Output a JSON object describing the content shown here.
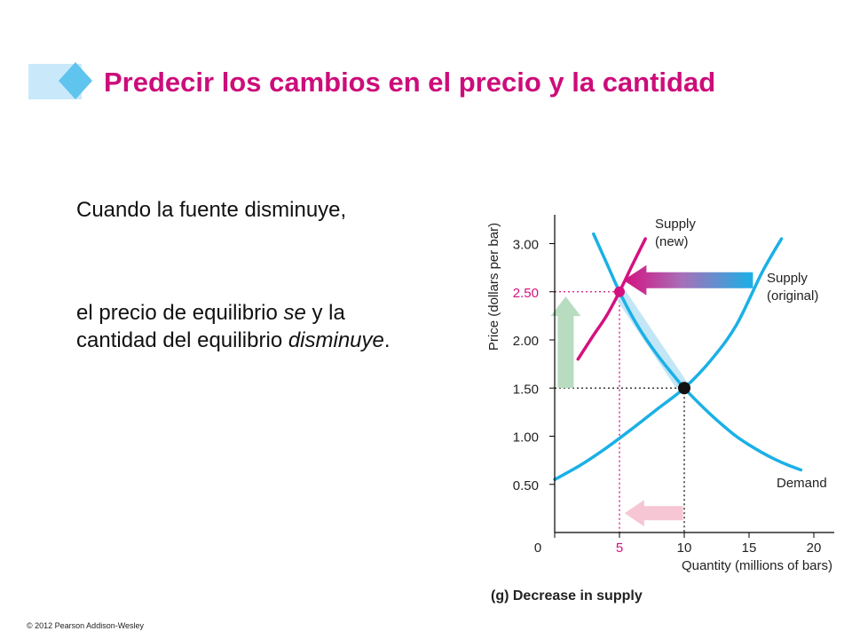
{
  "slide": {
    "title": "Predecir los cambios en el precio y la cantidad",
    "para1": "Cuando la fuente disminuye,",
    "para2_a": "el precio de equilibrio ",
    "para2_b": "se",
    "para2_c": " y la cantidad del equilibrio ",
    "para2_d": "disminuye",
    "para2_e": ".",
    "copyright": "© 2012 Pearson Addison-Wesley"
  },
  "colors": {
    "title": "#cc0d7a",
    "curve_blue": "#1ab0e6",
    "curve_new": "#d4117f",
    "arrow_green": "#b8dcc0",
    "arrow_pink": "#f6c6d4"
  },
  "chart_data": {
    "type": "line",
    "caption": "(g) Decrease in supply",
    "xlabel": "Quantity (millions of bars)",
    "ylabel": "Price (dollars per bar)",
    "xlim": [
      0,
      21
    ],
    "ylim": [
      0,
      3.3
    ],
    "x_ticks": [
      "0",
      "5",
      "10",
      "15",
      "20"
    ],
    "x_tick_values": [
      0,
      5,
      10,
      15,
      20
    ],
    "y_ticks": [
      "0.50",
      "1.00",
      "1.50",
      "2.00",
      "2.50",
      "3.00"
    ],
    "y_tick_values": [
      0.5,
      1.0,
      1.5,
      2.0,
      2.5,
      3.0
    ],
    "series": [
      {
        "name": "Demand",
        "label": "Demand",
        "color": "#1ab0e6",
        "x": [
          3,
          4,
          5,
          6,
          7,
          8,
          9,
          10,
          11,
          12,
          13,
          14,
          15,
          16,
          17,
          18,
          19
        ],
        "y": [
          3.1,
          2.8,
          2.5,
          2.24,
          2.02,
          1.83,
          1.66,
          1.5,
          1.36,
          1.23,
          1.11,
          1.0,
          0.91,
          0.83,
          0.76,
          0.7,
          0.65
        ]
      },
      {
        "name": "Supply (original)",
        "label": [
          "Supply",
          "(original)"
        ],
        "color": "#1ab0e6",
        "x": [
          0,
          2,
          4,
          6,
          8,
          10,
          12,
          14,
          16,
          17.5
        ],
        "y": [
          0.55,
          0.7,
          0.88,
          1.08,
          1.29,
          1.5,
          1.78,
          2.15,
          2.7,
          3.05
        ]
      },
      {
        "name": "Supply (new)",
        "label": [
          "Supply",
          "(new)"
        ],
        "color": "#d4117f",
        "x": [
          1.8,
          3,
          4,
          5,
          6,
          7
        ],
        "y": [
          1.8,
          2.05,
          2.25,
          2.5,
          2.78,
          3.05
        ]
      }
    ],
    "equilibria": [
      {
        "label": "original",
        "x": 10,
        "y": 1.5,
        "color": "#111111"
      },
      {
        "label": "new",
        "x": 5,
        "y": 2.5,
        "color": "#d4117f"
      }
    ]
  }
}
